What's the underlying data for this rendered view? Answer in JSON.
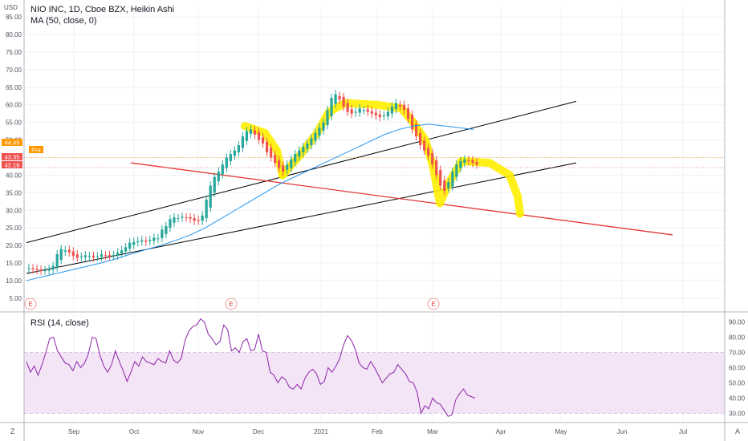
{
  "header": {
    "symbol_line": "NIO INC, 1D, Cboe BZX, Heikin Ashi",
    "ma_line": "MA (50, close, 0)",
    "currency": "USD"
  },
  "rsi_panel": {
    "label": "RSI (14, close)",
    "y_ticks": [
      "90.00",
      "80.00",
      "70.00",
      "60.00",
      "50.00",
      "40.00",
      "30.00"
    ]
  },
  "footer": {
    "left_btn": "Z",
    "right_btn": "A"
  },
  "price_badges": [
    {
      "text": "44.45",
      "color": "#ff9800"
    },
    {
      "text": "Pre",
      "color": "#ff9800"
    },
    {
      "text": "43.35",
      "color": "#ef5350"
    },
    {
      "text": "42.16",
      "color": "#ef5350"
    }
  ],
  "event_markers": [
    "E",
    "E",
    "E"
  ],
  "colors": {
    "up": "#26a69a",
    "down": "#ef5350",
    "ma": "#2196f3",
    "rsi": "#8e24aa",
    "rsi_band": "#f3e5f5",
    "highlight": "#ffee00",
    "trend_black": "#000000",
    "trend_red": "#e53935"
  },
  "chart_data": [
    {
      "type": "candlestick",
      "title": "NIO INC, 1D, Cboe BZX, Heikin Ashi",
      "ylabel": "USD",
      "x_ticks": [
        "Sep",
        "Oct",
        "Nov",
        "Dec",
        "2021",
        "Feb",
        "Mar",
        "Apr",
        "May",
        "Jun",
        "Jul"
      ],
      "y_ticks": [
        "5.00",
        "10.00",
        "15.00",
        "20.00",
        "25.00",
        "30.00",
        "35.00",
        "40.00",
        "45.00",
        "50.00",
        "55.00",
        "60.00",
        "65.00",
        "70.00",
        "75.00",
        "80.00",
        "85.00"
      ],
      "ylim": [
        2,
        88
      ],
      "grid": true,
      "series": [
        {
          "name": "NIO INC",
          "values": [
            13.5,
            13.2,
            13.0,
            12.8,
            12.9,
            13.3,
            14.2,
            17.5,
            19.0,
            18.6,
            18.0,
            17.0,
            16.5,
            16.8,
            17.2,
            17.0,
            16.6,
            16.9,
            17.5,
            17.1,
            16.9,
            17.3,
            18.0,
            18.6,
            19.5,
            20.8,
            21.0,
            21.2,
            21.5,
            21.0,
            21.6,
            22.2,
            22.0,
            24.5,
            25.5,
            27.5,
            28.0,
            27.8,
            28.2,
            27.9,
            27.6,
            27.0,
            27.0,
            28.5,
            33.0,
            37.0,
            39.5,
            41.0,
            43.0,
            45.0,
            46.0,
            47.0,
            48.5,
            51.0,
            52.5,
            53.0,
            51.5,
            50.0,
            49.0,
            46.5,
            45.0,
            43.5,
            42.0,
            41.0,
            43.0,
            44.5,
            46.0,
            47.0,
            48.0,
            49.0,
            50.5,
            52.0,
            53.5,
            55.0,
            58.5,
            62.0,
            63.0,
            61.5,
            59.5,
            58.0,
            57.5,
            58.0,
            59.0,
            58.5,
            58.0,
            57.5,
            57.0,
            56.5,
            57.0,
            58.0,
            59.5,
            60.5,
            59.5,
            58.5,
            56.0,
            53.0,
            51.0,
            48.5,
            47.0,
            45.5,
            43.0,
            40.0,
            37.0,
            35.5,
            38.0,
            41.0,
            43.0,
            44.0,
            44.5,
            44.0,
            43.5,
            43.0
          ]
        },
        {
          "name": "MA (50, close, 0)",
          "values": [
            10.0,
            11.0,
            12.0,
            13.0,
            14.0,
            15.0,
            16.2,
            17.5,
            18.8,
            20.0,
            21.4,
            23.0,
            25.0,
            27.5,
            30.0,
            32.5,
            35.0,
            37.5,
            39.5,
            41.5,
            43.5,
            45.5,
            47.5,
            49.5,
            51.5,
            53.0,
            54.0,
            54.5,
            54.0,
            53.5,
            53.0
          ]
        }
      ]
    },
    {
      "type": "line",
      "title": "RSI (14, close)",
      "ylim": [
        25,
        95
      ],
      "y_ticks": [
        "30.00",
        "40.00",
        "50.00",
        "60.00",
        "70.00",
        "80.00",
        "90.00"
      ],
      "x_ticks": [
        "Sep",
        "Oct",
        "Nov",
        "Dec",
        "2021",
        "Feb",
        "Mar",
        "Apr",
        "May",
        "Jun",
        "Jul"
      ],
      "band": [
        30,
        70
      ],
      "series": [
        {
          "name": "RSI (14, close)",
          "values": [
            64,
            57,
            61,
            55,
            62,
            70,
            79,
            80,
            71,
            67,
            63,
            62,
            58,
            64,
            60,
            63,
            69,
            80,
            79,
            68,
            61,
            57,
            62,
            71,
            64,
            58,
            51,
            57,
            64,
            61,
            67,
            64,
            63,
            62,
            66,
            64,
            63,
            71,
            65,
            63,
            66,
            78,
            84,
            87,
            88,
            92,
            90,
            82,
            79,
            75,
            77,
            88,
            85,
            71,
            73,
            70,
            77,
            79,
            71,
            72,
            82,
            71,
            70,
            57,
            55,
            50,
            54,
            52,
            47,
            46,
            49,
            46,
            53,
            57,
            59,
            56,
            49,
            51,
            60,
            57,
            61,
            66,
            75,
            81,
            78,
            72,
            63,
            60,
            59,
            64,
            60,
            55,
            50,
            53,
            56,
            57,
            62,
            59,
            56,
            51,
            50,
            44,
            30,
            35,
            33,
            40,
            37,
            36,
            32,
            28,
            29,
            39,
            43,
            46,
            42,
            41,
            40
          ]
        }
      ]
    }
  ]
}
